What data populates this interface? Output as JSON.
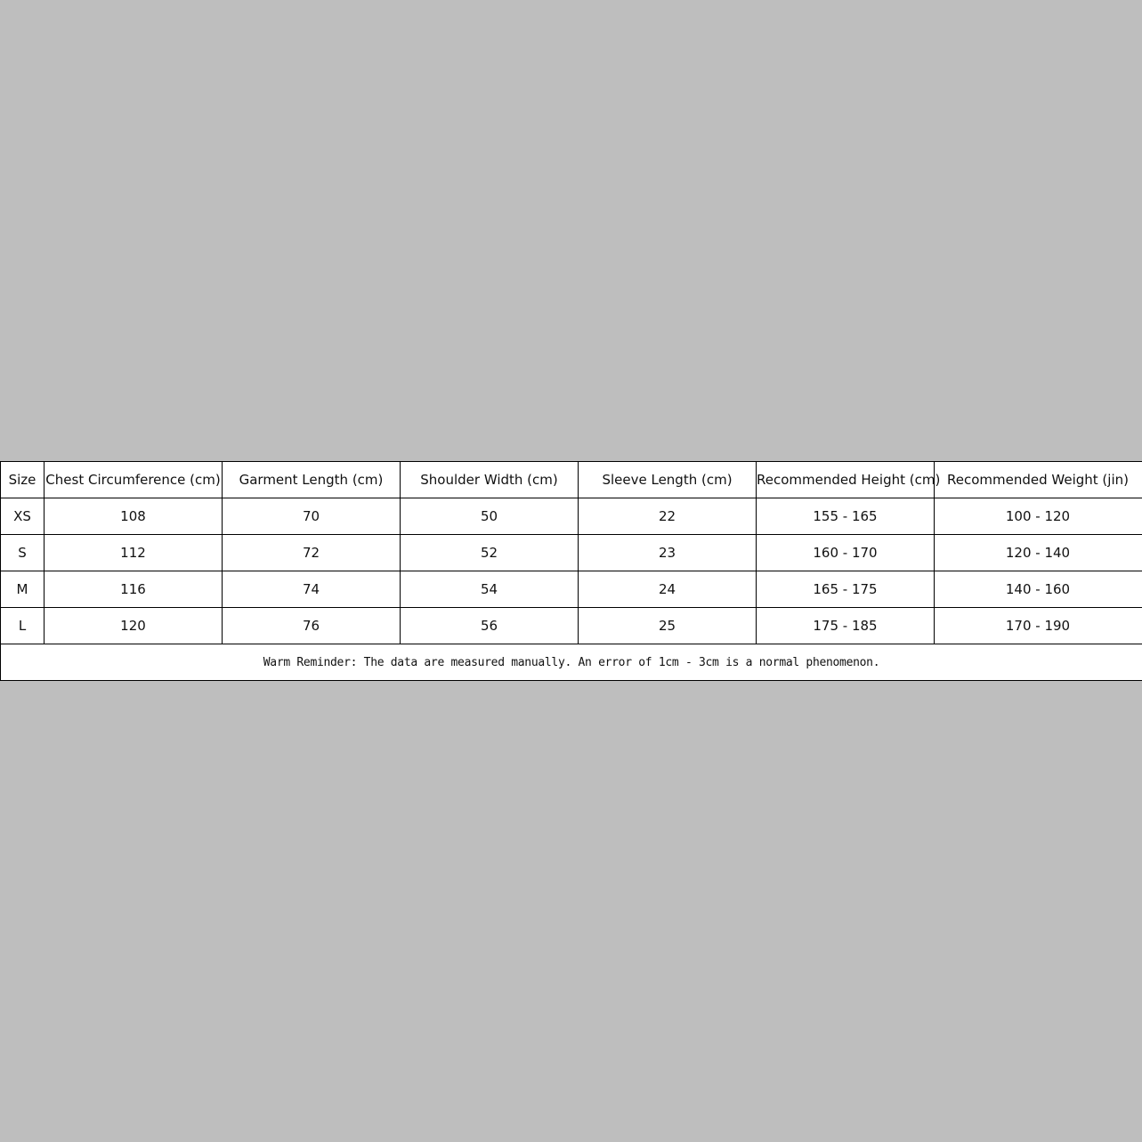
{
  "table": {
    "headers": [
      "Size",
      "Chest Circumference (cm)",
      "Garment Length (cm)",
      "Shoulder Width (cm)",
      "Sleeve Length (cm)",
      "Recommended Height (cm)",
      "Recommended Weight (jin)"
    ],
    "rows": [
      [
        "XS",
        "108",
        "70",
        "50",
        "22",
        "155 - 165",
        "100 - 120"
      ],
      [
        "S",
        "112",
        "72",
        "52",
        "23",
        "160 - 170",
        "120 - 140"
      ],
      [
        "M",
        "116",
        "74",
        "54",
        "24",
        "165 - 175",
        "140 - 160"
      ],
      [
        "L",
        "120",
        "76",
        "56",
        "25",
        "175 - 185",
        "170 - 190"
      ]
    ],
    "note": "Warm Reminder: The data are measured manually. An error of 1cm - 3cm is a normal phenomenon."
  }
}
